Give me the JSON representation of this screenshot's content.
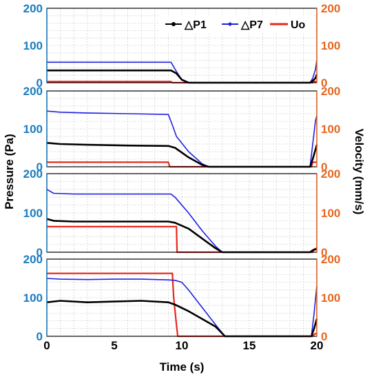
{
  "chart_data": {
    "type": "line",
    "xlabel": "Time (s)",
    "ylabel_left": "Pressure (Pa)",
    "ylabel_right": "Velocity (mm/s)",
    "xlim": [
      0,
      20
    ],
    "x_ticks": [
      "0",
      "5",
      "10",
      "15",
      "20"
    ],
    "ylim_left": [
      0,
      200
    ],
    "ylim_right": [
      0,
      200
    ],
    "y_ticks": [
      "0",
      "100",
      "200"
    ],
    "grid": true,
    "legend": {
      "placement": "top-right of first panel",
      "entries": [
        "△P1",
        "△P7",
        "Uo"
      ]
    },
    "colors": {
      "dp1": "#000000",
      "dp7": "#1f1fe0",
      "uo": "#e8261a",
      "left_axis": "#1a7bbf",
      "right_axis": "#e8641e",
      "grid": "#d2d2d2"
    },
    "panels": [
      {
        "series": [
          {
            "name": "△P1",
            "x": [
              0,
              9.2,
              9.6,
              10.0,
              10.5,
              19.5,
              19.7,
              19.9,
              20.0
            ],
            "y": [
              33,
              33,
              25,
              8,
              0,
              0,
              5,
              12,
              22
            ]
          },
          {
            "name": "△P7",
            "x": [
              0,
              9.2,
              9.6,
              10.0,
              10.5,
              19.5,
              19.7,
              19.9,
              20.0
            ],
            "y": [
              55,
              55,
              30,
              8,
              0,
              0,
              12,
              35,
              60
            ]
          },
          {
            "name": "Uo",
            "x": [
              0,
              9.2,
              9.3,
              19.7,
              19.8,
              20.0
            ],
            "y": [
              3,
              3,
              0,
              0,
              3,
              3
            ]
          }
        ]
      },
      {
        "series": [
          {
            "name": "△P1",
            "x": [
              0,
              1,
              3,
              6,
              9,
              9.5,
              10.5,
              11.5,
              12.0,
              19.5,
              19.7,
              19.9,
              20.0
            ],
            "y": [
              63,
              60,
              58,
              56,
              55,
              50,
              25,
              5,
              0,
              0,
              20,
              45,
              58
            ]
          },
          {
            "name": "△P7",
            "x": [
              0,
              1,
              3,
              6,
              9,
              9.3,
              9.6,
              10.5,
              11.5,
              12.0,
              19.5,
              19.7,
              19.9,
              20.0
            ],
            "y": [
              147,
              144,
              142,
              140,
              138,
              110,
              80,
              40,
              8,
              0,
              0,
              60,
              120,
              135
            ]
          },
          {
            "name": "Uo",
            "x": [
              0,
              9.0,
              9.1,
              19.6,
              19.7,
              20.0
            ],
            "y": [
              12,
              12,
              0,
              0,
              12,
              12
            ]
          }
        ]
      },
      {
        "series": [
          {
            "name": "△P1",
            "x": [
              0,
              0.5,
              2,
              5,
              9,
              9.5,
              10.5,
              11.5,
              12.5,
              13.0,
              19.5,
              19.7,
              20.0
            ],
            "y": [
              85,
              80,
              78,
              78,
              78,
              75,
              60,
              35,
              10,
              0,
              0,
              5,
              8
            ]
          },
          {
            "name": "△P7",
            "x": [
              0,
              0.5,
              2,
              5,
              9.2,
              9.5,
              10.5,
              11.5,
              12.5,
              13.0,
              19.5,
              19.7,
              20.0
            ],
            "y": [
              160,
              150,
              148,
              148,
              148,
              140,
              100,
              55,
              15,
              0,
              0,
              5,
              10
            ]
          },
          {
            "name": "Uo",
            "x": [
              0,
              9.6,
              9.65,
              19.7,
              19.8,
              20.0
            ],
            "y": [
              65,
              65,
              0,
              0,
              8,
              10
            ]
          }
        ]
      },
      {
        "series": [
          {
            "name": "△P1",
            "x": [
              0,
              1,
              3,
              5,
              7,
              9,
              9.5,
              10.5,
              11.5,
              12.5,
              13.2,
              19.6,
              19.8,
              20.0
            ],
            "y": [
              88,
              92,
              88,
              90,
              92,
              88,
              82,
              65,
              45,
              25,
              0,
              0,
              20,
              45
            ]
          },
          {
            "name": "△P7",
            "x": [
              0,
              1,
              3,
              5,
              7,
              9,
              9.5,
              10.0,
              10.5,
              11.5,
              12.5,
              13.2,
              19.6,
              19.8,
              20.0
            ],
            "y": [
              150,
              148,
              147,
              148,
              148,
              146,
              145,
              140,
              120,
              75,
              30,
              0,
              0,
              60,
              130
            ]
          },
          {
            "name": "Uo",
            "x": [
              0,
              9.3,
              9.4,
              9.6,
              9.7,
              19.7,
              19.8,
              20.0
            ],
            "y": [
              163,
              163,
              100,
              30,
              0,
              0,
              5,
              8
            ]
          }
        ]
      }
    ]
  }
}
